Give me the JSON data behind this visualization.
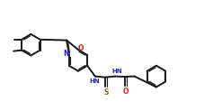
{
  "bg_color": "#ffffff",
  "line_color": "#1a1a1a",
  "label_color_N": "#2222cc",
  "label_color_O": "#cc2222",
  "label_color_S": "#8b6914",
  "line_width": 1.4,
  "inner_lw": 0.85,
  "figsize": [
    2.47,
    1.23
  ],
  "dpi": 100,
  "r_hex": 0.55,
  "xlim": [
    0.0,
    11.5
  ],
  "ylim": [
    0.5,
    5.5
  ]
}
